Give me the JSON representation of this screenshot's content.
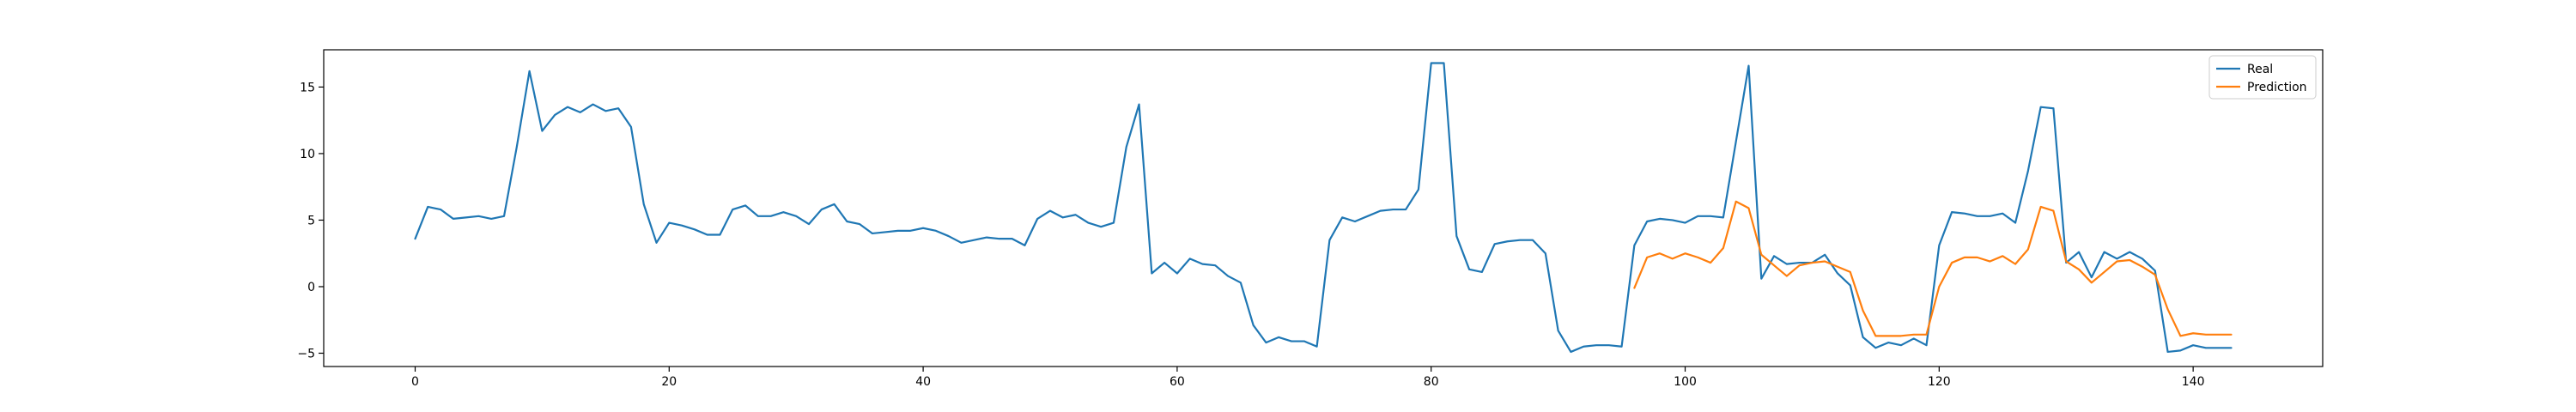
{
  "chart_data": {
    "type": "line",
    "title": "",
    "xlabel": "",
    "ylabel": "",
    "xlim": [
      -7.2,
      150.2
    ],
    "ylim": [
      -6.0,
      17.8
    ],
    "xticks": [
      0,
      20,
      40,
      60,
      80,
      100,
      120,
      140
    ],
    "yticks": [
      -5,
      0,
      5,
      10,
      15
    ],
    "grid": false,
    "legend_position": "top-right",
    "series": [
      {
        "name": "Real",
        "color": "#1f77b4",
        "x_start": 0,
        "values": [
          3.6,
          6.0,
          5.8,
          5.1,
          5.2,
          5.3,
          5.1,
          5.3,
          10.5,
          16.2,
          11.7,
          12.9,
          13.5,
          13.1,
          13.7,
          13.2,
          13.4,
          12.0,
          6.2,
          3.3,
          4.8,
          4.6,
          4.3,
          3.9,
          3.9,
          5.8,
          6.1,
          5.3,
          5.3,
          5.6,
          5.3,
          4.7,
          5.8,
          6.2,
          4.9,
          4.7,
          4.0,
          4.1,
          4.2,
          4.2,
          4.4,
          4.2,
          3.8,
          3.3,
          3.5,
          3.7,
          3.6,
          3.6,
          3.1,
          5.1,
          5.7,
          5.2,
          5.4,
          4.8,
          4.5,
          4.8,
          10.5,
          13.7,
          1.0,
          1.8,
          1.0,
          2.1,
          1.7,
          1.6,
          0.8,
          0.3,
          -2.9,
          -4.2,
          -3.8,
          -4.1,
          -4.1,
          -4.5,
          3.5,
          5.2,
          4.9,
          5.3,
          5.7,
          5.8,
          5.8,
          7.3,
          16.8,
          16.8,
          3.8,
          1.3,
          1.1,
          3.2,
          3.4,
          3.5,
          3.5,
          2.5,
          -3.3,
          -4.9,
          -4.5,
          -4.4,
          -4.4,
          -4.5,
          3.1,
          4.9,
          5.1,
          5.0,
          4.8,
          5.3,
          5.3,
          5.2,
          10.9,
          16.6,
          0.6,
          2.3,
          1.7,
          1.8,
          1.8,
          2.4,
          1.0,
          0.1,
          -3.8,
          -4.6,
          -4.2,
          -4.4,
          -3.9,
          -4.4,
          3.1,
          5.6,
          5.5,
          5.3,
          5.3,
          5.5,
          4.8,
          8.7,
          13.5,
          13.4,
          1.8,
          2.6,
          0.7,
          2.6,
          2.1,
          2.6,
          2.1,
          1.2,
          -4.9,
          -4.8,
          -4.4,
          -4.6,
          -4.6,
          -4.6
        ]
      },
      {
        "name": "Prediction",
        "color": "#ff7f0e",
        "x_start": 96,
        "values": [
          -0.1,
          2.2,
          2.5,
          2.1,
          2.5,
          2.2,
          1.8,
          2.9,
          6.4,
          5.9,
          2.4,
          1.6,
          0.8,
          1.6,
          1.8,
          1.9,
          1.5,
          1.1,
          -1.8,
          -3.7,
          -3.7,
          -3.7,
          -3.6,
          -3.6,
          0.0,
          1.8,
          2.2,
          2.2,
          1.9,
          2.3,
          1.7,
          2.8,
          6.0,
          5.7,
          1.9,
          1.3,
          0.3,
          1.1,
          1.9,
          2.0,
          1.5,
          0.9,
          -1.7,
          -3.7,
          -3.5,
          -3.6,
          -3.6,
          -3.6
        ]
      }
    ]
  }
}
